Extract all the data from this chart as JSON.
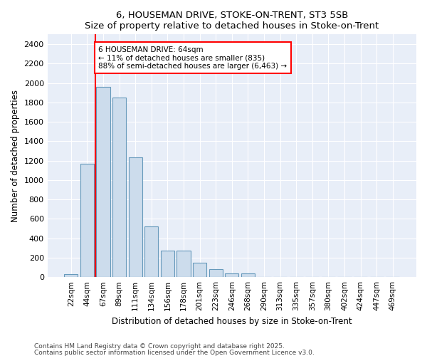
{
  "title1": "6, HOUSEMAN DRIVE, STOKE-ON-TRENT, ST3 5SB",
  "title2": "Size of property relative to detached houses in Stoke-on-Trent",
  "xlabel": "Distribution of detached houses by size in Stoke-on-Trent",
  "ylabel": "Number of detached properties",
  "bar_color": "#ccdcec",
  "bar_edge_color": "#6699bb",
  "background_color": "#e8eef8",
  "grid_color": "#ffffff",
  "bins": [
    "22sqm",
    "44sqm",
    "67sqm",
    "89sqm",
    "111sqm",
    "134sqm",
    "156sqm",
    "178sqm",
    "201sqm",
    "223sqm",
    "246sqm",
    "268sqm",
    "290sqm",
    "313sqm",
    "335sqm",
    "357sqm",
    "380sqm",
    "402sqm",
    "424sqm",
    "447sqm",
    "469sqm"
  ],
  "values": [
    30,
    1170,
    1960,
    1850,
    1230,
    520,
    275,
    275,
    145,
    85,
    40,
    40,
    0,
    0,
    0,
    0,
    0,
    0,
    0,
    0,
    0
  ],
  "ylim": [
    0,
    2500
  ],
  "yticks": [
    0,
    200,
    400,
    600,
    800,
    1000,
    1200,
    1400,
    1600,
    1800,
    2000,
    2200,
    2400
  ],
  "red_line_bin_index": 2,
  "annotation_line1": "6 HOUSEMAN DRIVE: 64sqm",
  "annotation_line2": "← 11% of detached houses are smaller (835)",
  "annotation_line3": "88% of semi-detached houses are larger (6,463) →",
  "footer1": "Contains HM Land Registry data © Crown copyright and database right 2025.",
  "footer2": "Contains public sector information licensed under the Open Government Licence v3.0."
}
